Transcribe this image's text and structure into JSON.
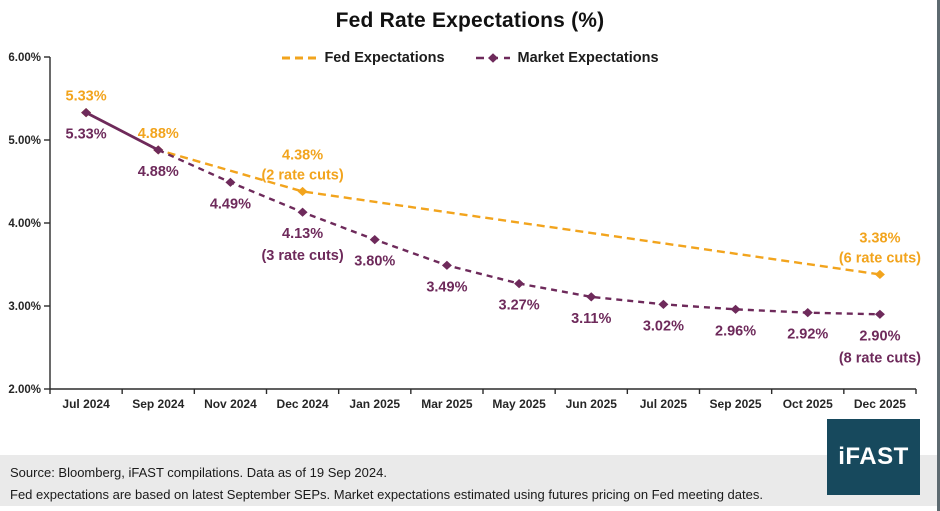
{
  "title": "Fed Rate Expectations (%)",
  "chart_data": {
    "type": "line",
    "title": "Fed Rate Expectations (%)",
    "categories": [
      "Jul 2024",
      "Sep 2024",
      "Nov 2024",
      "Dec 2024",
      "Jan 2025",
      "Mar 2025",
      "May 2025",
      "Jun 2025",
      "Jul 2025",
      "Sep 2025",
      "Oct 2025",
      "Dec 2025"
    ],
    "ylim": [
      2.0,
      6.0
    ],
    "y_ticks": [
      "6.00%",
      "5.00%",
      "4.00%",
      "3.00%",
      "2.00%"
    ],
    "grid": false,
    "legend_position": "top-center",
    "series": [
      {
        "name": "Fed Expectations",
        "color": "#F2A41D",
        "line_style": "dashed",
        "label_side": "above",
        "values": [
          5.33,
          4.88,
          null,
          4.38,
          null,
          null,
          null,
          null,
          null,
          null,
          null,
          3.38
        ],
        "labels": [
          [
            "5.33%"
          ],
          [
            "4.88%"
          ],
          null,
          [
            "4.38%",
            "(2 rate cuts)"
          ],
          null,
          null,
          null,
          null,
          null,
          null,
          null,
          [
            "3.38%",
            "(6 rate cuts)"
          ]
        ]
      },
      {
        "name": "Market Expectations",
        "color": "#6E2A5B",
        "line_style": "solid_first_segment_then_dashed",
        "label_side": "below",
        "values": [
          5.33,
          4.88,
          4.49,
          4.13,
          3.8,
          3.49,
          3.27,
          3.11,
          3.02,
          2.96,
          2.92,
          2.9
        ],
        "labels": [
          [
            "5.33%"
          ],
          [
            "4.88%"
          ],
          [
            "4.49%"
          ],
          [
            "4.13%",
            "(3 rate cuts)"
          ],
          [
            "3.80%"
          ],
          [
            "3.49%"
          ],
          [
            "3.27%"
          ],
          [
            "3.11%"
          ],
          [
            "3.02%"
          ],
          [
            "2.96%"
          ],
          [
            "2.92%"
          ],
          [
            "2.90%",
            "(8 rate cuts)"
          ]
        ]
      }
    ]
  },
  "footer": {
    "source_line": "Source: Bloomberg, iFAST compilations. Data as of 19 Sep 2024.",
    "note_line": "Fed expectations are based on latest September SEPs. Market expectations estimated using futures pricing on Fed meeting dates."
  },
  "logo": {
    "text": "iFAST",
    "bg_color": "#17495D"
  },
  "colors": {
    "axis": "#2b2b2b",
    "tick_label": "#262626",
    "footer_bg": "#EAEAEA"
  }
}
